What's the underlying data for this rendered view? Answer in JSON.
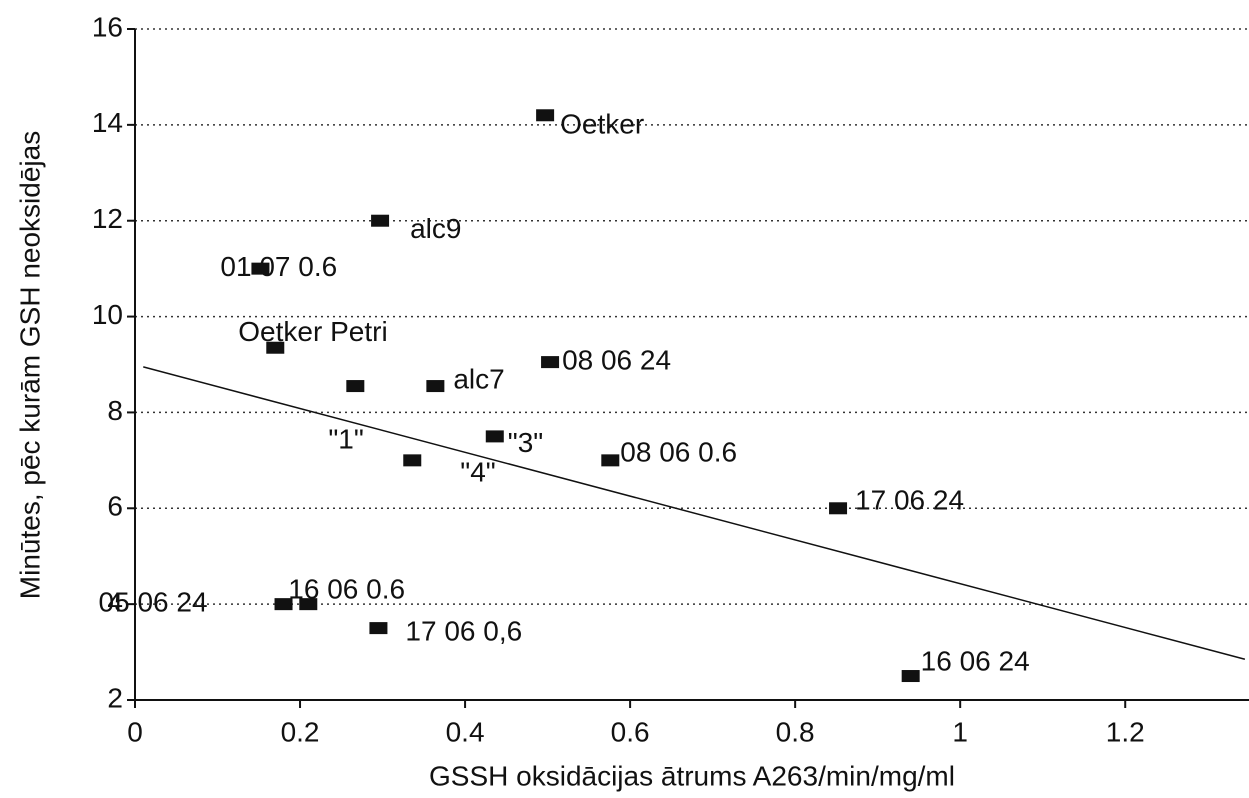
{
  "chart_data": {
    "type": "scatter",
    "xlabel": "GSSH oksidācijas ātrums A263/min/mg/ml",
    "ylabel": "Minūtes, pēc kurām GSH neoksidējas",
    "series": [
      {
        "name": null,
        "color": "#111111",
        "labels": [
          "Oetker",
          "alc9",
          "01 07 0.6",
          "Oetker Petri",
          "\"1\"",
          "alc7",
          "08 06 24",
          "\"3\"",
          "\"4\"",
          "08 06 0.6",
          "17 06 24",
          "05 06 24",
          "16 06 0.6",
          "17 06 0,6",
          "16 06 24"
        ],
        "x": [
          0.497,
          0.297,
          0.152,
          0.17,
          0.267,
          0.364,
          0.503,
          0.436,
          0.336,
          0.576,
          0.852,
          0.18,
          0.21,
          0.295,
          0.94
        ],
        "values": [
          14.2,
          12,
          11,
          9.35,
          8.55,
          8.55,
          9.05,
          7.5,
          7,
          7,
          6,
          4,
          4,
          3.5,
          2.5
        ]
      }
    ],
    "trendline": {
      "x": [
        0.01,
        1.345
      ],
      "values": [
        8.95,
        2.85
      ]
    },
    "xlim": [
      0,
      1.35
    ],
    "xticks": [
      0,
      0.2,
      0.4,
      0.6,
      0.8,
      1,
      1.2
    ],
    "ylim": [
      2,
      16
    ],
    "yticks": [
      2,
      4,
      6,
      8,
      10,
      12,
      14,
      16
    ],
    "grid": true
  }
}
